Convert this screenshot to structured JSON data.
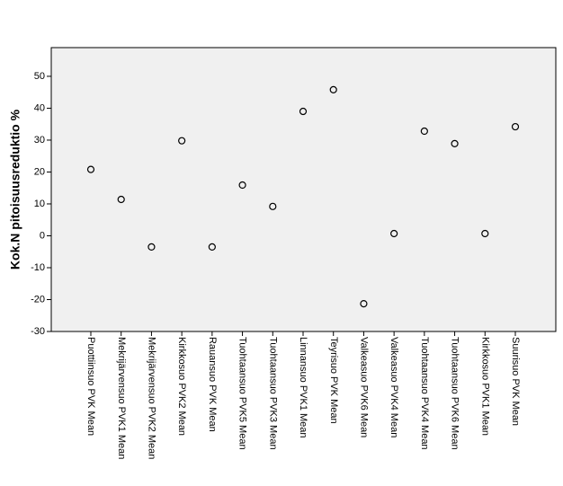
{
  "chart_data": {
    "type": "dot",
    "y_label": "Kok.N pitoisuusreduktio %",
    "categories": [
      "Puottiinsuo PVK Mean",
      "Mekrijärvensuo PVK1 Mean",
      "Mekrijärvensuo PVK2 Mean",
      "Kirkkosuo PVK2 Mean",
      "Rauansuo PVK Mean",
      "Tuohtaansuo PVK5 Mean",
      "Tuohtaansuo PVK3 Mean",
      "Linnansuo PVK1 Mean",
      "Teyrisuo PVK Mean",
      "Valkeasuo PVK6 Mean",
      "Valkeasuo PVK4 Mean",
      "Tuohtaansuo PVK4 Mean",
      "Tuohtaansuo PVK6 Mean",
      "Kirkkosuo PVK1 Mean",
      "Suurisuo PVK Mean"
    ],
    "values": [
      20.8,
      11.4,
      -3.5,
      29.8,
      -3.5,
      15.9,
      9.2,
      39,
      45.8,
      -21.3,
      0.7,
      32.8,
      28.9,
      0.7,
      34.2
    ],
    "color": "#000000",
    "ylim": [
      -30,
      59
    ],
    "yticks": [
      -30,
      -20,
      -10,
      0,
      10,
      20,
      30,
      40,
      50
    ]
  }
}
